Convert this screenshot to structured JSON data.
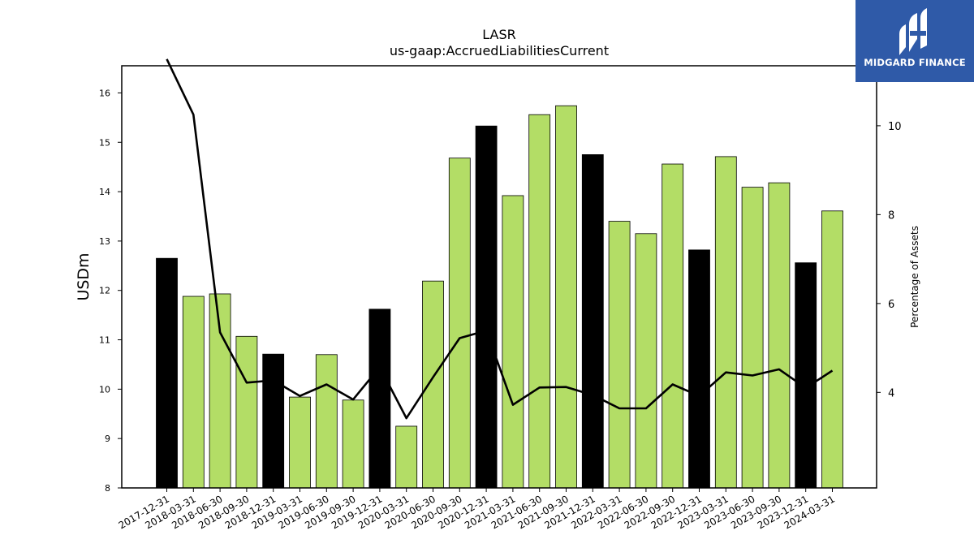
{
  "chart_data": {
    "type": "bar",
    "title": "LASR",
    "subtitle": "us-gaap:AccruedLiabilitiesCurrent",
    "ylabel": "USDm",
    "y2label": "Percentage of Assets",
    "ylim": [
      8,
      16.55
    ],
    "y2lim": [
      1.85,
      11.35
    ],
    "yticks": [
      8,
      9,
      10,
      11,
      12,
      13,
      14,
      15,
      16
    ],
    "y2ticks": [
      4,
      6,
      8,
      10
    ],
    "categories": [
      "2017-12-31",
      "2018-03-31",
      "2018-06-30",
      "2018-09-30",
      "2018-12-31",
      "2019-03-31",
      "2019-06-30",
      "2019-09-30",
      "2019-12-31",
      "2020-03-31",
      "2020-06-30",
      "2020-09-30",
      "2020-12-31",
      "2021-03-31",
      "2021-06-30",
      "2021-09-30",
      "2021-12-31",
      "2022-03-31",
      "2022-06-30",
      "2022-09-30",
      "2022-12-31",
      "2023-03-31",
      "2023-06-30",
      "2023-09-30",
      "2023-12-31",
      "2024-03-31"
    ],
    "series": [
      {
        "values": [
          12.65,
          11.88,
          11.93,
          11.07,
          10.71,
          9.84,
          10.7,
          9.78,
          11.62,
          9.25,
          12.19,
          14.68,
          15.33,
          13.92,
          15.56,
          15.74,
          14.75,
          13.4,
          13.15,
          14.56,
          12.82,
          14.71,
          14.09,
          14.18,
          12.56,
          13.61
        ],
        "colors": [
          "#000000",
          "#b3dd66",
          "#b3dd66",
          "#b3dd66",
          "#000000",
          "#b3dd66",
          "#b3dd66",
          "#b3dd66",
          "#000000",
          "#b3dd66",
          "#b3dd66",
          "#b3dd66",
          "#000000",
          "#b3dd66",
          "#b3dd66",
          "#b3dd66",
          "#000000",
          "#b3dd66",
          "#b3dd66",
          "#b3dd66",
          "#000000",
          "#b3dd66",
          "#b3dd66",
          "#b3dd66",
          "#000000",
          "#b3dd66"
        ]
      },
      {
        "type": "line",
        "axis": "right",
        "color": "#000000",
        "values": [
          11.5,
          10.25,
          5.35,
          4.22,
          4.27,
          3.92,
          4.18,
          3.84,
          4.57,
          3.42,
          4.34,
          5.22,
          5.39,
          3.72,
          4.11,
          4.12,
          3.94,
          3.64,
          3.64,
          4.18,
          3.92,
          4.45,
          4.38,
          4.52,
          4.1,
          4.49
        ]
      }
    ],
    "grid": false
  },
  "logo": {
    "text": "MIDGARD FINANCE",
    "bg_color": "#2f5aa8"
  }
}
